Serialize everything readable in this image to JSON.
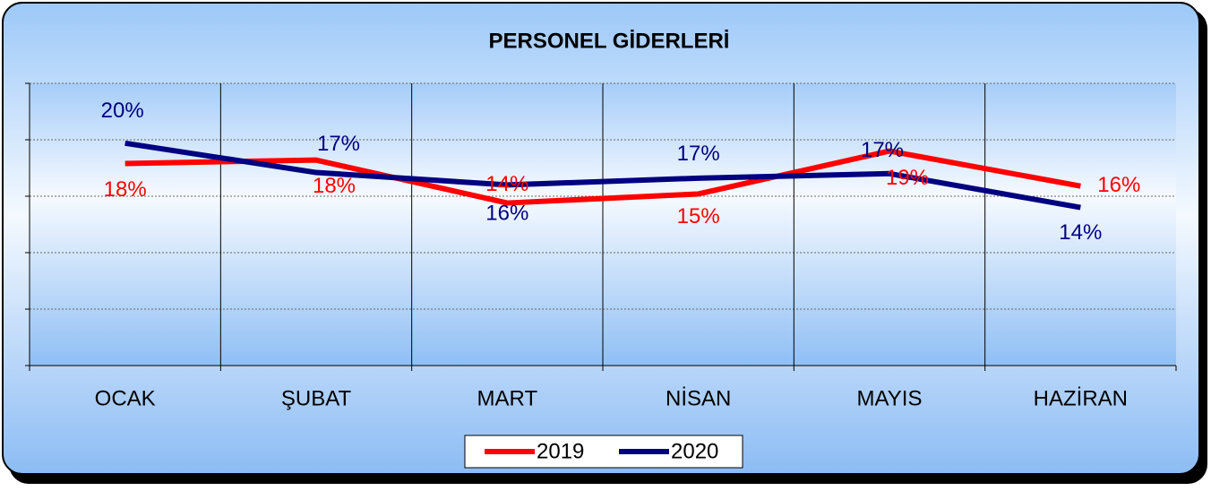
{
  "chart_data": {
    "type": "line",
    "title": "PERSONEL GİDERLERİ",
    "categories": [
      "OCAK",
      "ŞUBAT",
      "MART",
      "NİSAN",
      "MAYIS",
      "HAZİRAN"
    ],
    "series": [
      {
        "name": "2019",
        "color": "#ff0000",
        "values": [
          17.9,
          18.2,
          14.4,
          15.2,
          19.0,
          15.9
        ],
        "value_labels": [
          "18%",
          "18%",
          "14%",
          "15%",
          "19%",
          "16%"
        ]
      },
      {
        "name": "2020",
        "color": "#000080",
        "values": [
          19.7,
          17.1,
          16.0,
          16.6,
          17.0,
          14.0
        ],
        "value_labels": [
          "20%",
          "17%",
          "16%",
          "17%",
          "17%",
          "14%"
        ]
      }
    ],
    "ylim": [
      0,
      25
    ],
    "yticks": [
      0,
      5,
      10,
      15,
      20,
      25
    ],
    "grid": true,
    "legend": "bottom"
  }
}
